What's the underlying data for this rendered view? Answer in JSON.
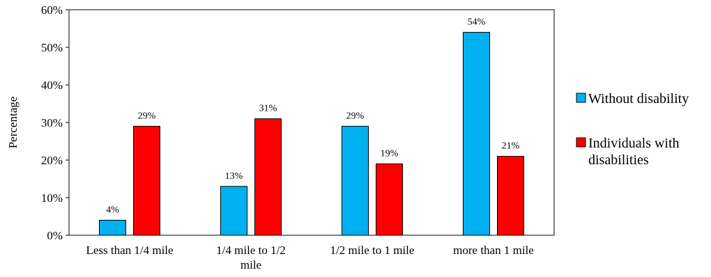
{
  "chart_data": {
    "type": "bar",
    "title": "",
    "xlabel": "",
    "ylabel": "Percentage",
    "ylim": [
      0,
      60
    ],
    "y_ticks": [
      "0%",
      "10%",
      "20%",
      "30%",
      "40%",
      "50%",
      "60%"
    ],
    "categories": [
      [
        "Less than 1/4 mile"
      ],
      [
        "1/4 mile to 1/2",
        "mile"
      ],
      [
        "1/2 mile to 1 mile"
      ],
      [
        "more than 1 mile"
      ]
    ],
    "series": [
      {
        "name": "Without disability",
        "color": "#00B0F0",
        "values": [
          4,
          13,
          29,
          54
        ],
        "labels": [
          "4%",
          "13%",
          "29%",
          "54%"
        ]
      },
      {
        "name": "Individuals with disabilities",
        "color": "#FF0000",
        "values": [
          29,
          31,
          19,
          21
        ],
        "labels": [
          "29%",
          "31%",
          "19%",
          "21%"
        ]
      }
    ],
    "legend": {
      "placement": "right",
      "entries": [
        [
          "Without disability"
        ],
        [
          "Individuals with",
          "disabilities"
        ]
      ]
    },
    "grid": false
  }
}
